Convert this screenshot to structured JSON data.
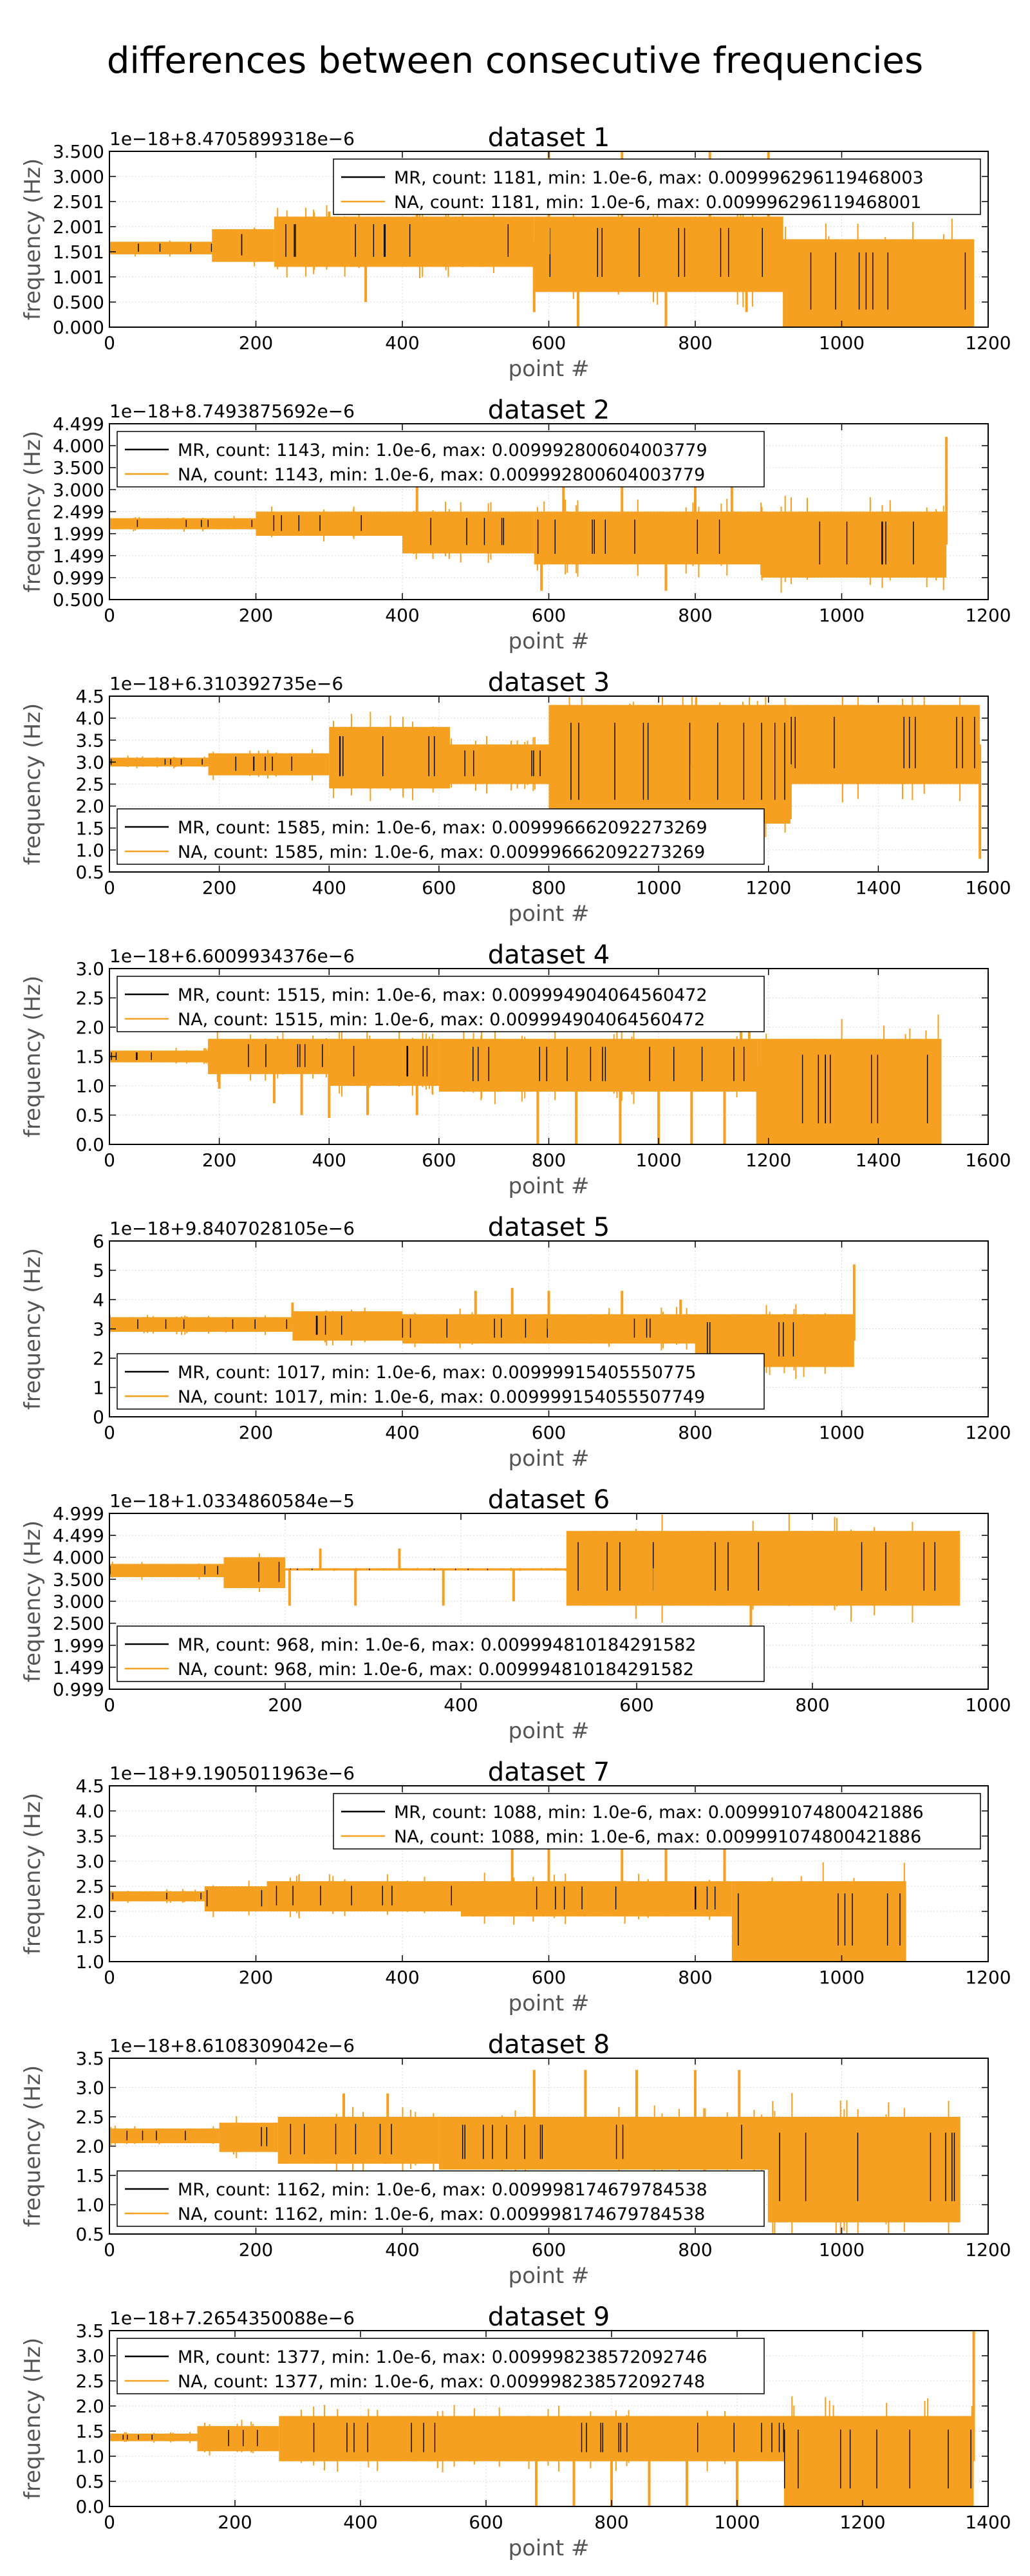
{
  "title": "differences between consecutive frequencies",
  "colors": {
    "MR": "#000000",
    "NA": "#f5a020",
    "axes": "#000000",
    "grid": "#d8d8d8",
    "label": "#555555"
  },
  "chart_data": [
    {
      "type": "line",
      "title": "dataset 1",
      "offset_label": "1e−18+8.4705899318e−6",
      "xlabel": "point #",
      "ylabel": "frequency (Hz)",
      "xlim": [
        0,
        1200
      ],
      "ylim": [
        0.0,
        3.5
      ],
      "xticks": [
        "0",
        "200",
        "400",
        "600",
        "800",
        "1000",
        "1200"
      ],
      "xtick_values": [
        0,
        200,
        400,
        600,
        800,
        1000,
        1200
      ],
      "yticks": [
        "0.000",
        "0.500",
        "1.001",
        "1.501",
        "2.001",
        "2.501",
        "3.000",
        "3.500"
      ],
      "ytick_values": [
        0.0,
        0.5,
        1.001,
        1.501,
        2.001,
        2.501,
        3.0,
        3.5
      ],
      "grid": true,
      "legend_position": "top-right",
      "series": [
        {
          "name": "MR, count: 1181, min: 1.0e-6, max: 0.009996296119468003",
          "count": 1181,
          "min": "1.0e-6",
          "max": "0.009996296119468003"
        },
        {
          "name": "NA, count: 1181, min: 1.0e-6, max: 0.009996296119468001",
          "count": 1181,
          "min": "1.0e-6",
          "max": "0.009996296119468001"
        }
      ],
      "bands": [
        [
          0,
          140,
          1.45,
          1.7
        ],
        [
          140,
          225,
          1.3,
          1.95
        ],
        [
          225,
          580,
          1.2,
          2.2
        ],
        [
          580,
          920,
          0.7,
          2.2
        ],
        [
          920,
          1181,
          0.0,
          1.75
        ]
      ],
      "spikes": [
        [
          300,
          2.3
        ],
        [
          350,
          0.5
        ],
        [
          420,
          2.6
        ],
        [
          580,
          0.3
        ],
        [
          600,
          3.6
        ],
        [
          640,
          0.0
        ],
        [
          700,
          3.6
        ],
        [
          760,
          0.0
        ],
        [
          820,
          3.6
        ],
        [
          870,
          0.3
        ],
        [
          900,
          3.6
        ]
      ]
    },
    {
      "type": "line",
      "title": "dataset 2",
      "offset_label": "1e−18+8.7493875692e−6",
      "xlabel": "point #",
      "ylabel": "frequency (Hz)",
      "xlim": [
        0,
        1200
      ],
      "ylim": [
        0.5,
        4.499
      ],
      "xticks": [
        "0",
        "200",
        "400",
        "600",
        "800",
        "1000",
        "1200"
      ],
      "xtick_values": [
        0,
        200,
        400,
        600,
        800,
        1000,
        1200
      ],
      "yticks": [
        "0.500",
        "0.999",
        "1.499",
        "1.999",
        "2.499",
        "3.000",
        "3.500",
        "4.000",
        "4.499"
      ],
      "ytick_values": [
        0.5,
        0.999,
        1.499,
        1.999,
        2.499,
        3.0,
        3.5,
        4.0,
        4.499
      ],
      "grid": true,
      "legend_position": "top-left",
      "series": [
        {
          "name": "MR, count: 1143, min: 1.0e-6, max: 0.009992800604003779",
          "count": 1143,
          "min": "1.0e-6",
          "max": "0.009992800604003779"
        },
        {
          "name": "NA, count: 1143, min: 1.0e-6, max: 0.009992800604003779",
          "count": 1143,
          "min": "1.0e-6",
          "max": "0.009992800604003779"
        }
      ],
      "bands": [
        [
          0,
          200,
          2.1,
          2.35
        ],
        [
          200,
          400,
          1.95,
          2.5
        ],
        [
          400,
          580,
          1.55,
          2.5
        ],
        [
          580,
          890,
          1.3,
          2.5
        ],
        [
          890,
          1143,
          1.0,
          2.5
        ]
      ],
      "spikes": [
        [
          420,
          3.2
        ],
        [
          590,
          0.7
        ],
        [
          620,
          4.2
        ],
        [
          700,
          3.9
        ],
        [
          760,
          0.7
        ],
        [
          800,
          4.2
        ],
        [
          850,
          4.0
        ],
        [
          1143,
          4.2
        ]
      ]
    },
    {
      "type": "line",
      "title": "dataset 3",
      "offset_label": "1e−18+6.310392735e−6",
      "xlabel": "point #",
      "ylabel": "frequency (Hz)",
      "xlim": [
        0,
        1600
      ],
      "ylim": [
        0.5,
        4.5
      ],
      "xticks": [
        "0",
        "200",
        "400",
        "600",
        "800",
        "1000",
        "1200",
        "1400",
        "1600"
      ],
      "xtick_values": [
        0,
        200,
        400,
        600,
        800,
        1000,
        1200,
        1400,
        1600
      ],
      "yticks": [
        "0.5",
        "1.0",
        "1.5",
        "2.0",
        "2.5",
        "3.0",
        "3.5",
        "4.0",
        "4.5"
      ],
      "ytick_values": [
        0.5,
        1.0,
        1.5,
        2.0,
        2.5,
        3.0,
        3.5,
        4.0,
        4.5
      ],
      "grid": true,
      "legend_position": "bottom-left",
      "series": [
        {
          "name": "MR, count: 1585, min: 1.0e-6, max: 0.009996662092273269",
          "count": 1585,
          "min": "1.0e-6",
          "max": "0.009996662092273269"
        },
        {
          "name": "NA, count: 1585, min: 1.0e-6, max: 0.009996662092273269",
          "count": 1585,
          "min": "1.0e-6",
          "max": "0.009996662092273269"
        }
      ],
      "bands": [
        [
          0,
          180,
          2.9,
          3.1
        ],
        [
          180,
          400,
          2.7,
          3.2
        ],
        [
          400,
          620,
          2.4,
          3.8
        ],
        [
          620,
          800,
          2.5,
          3.4
        ],
        [
          800,
          1240,
          1.6,
          4.3
        ],
        [
          1240,
          1585,
          2.5,
          4.3
        ]
      ],
      "spikes": [
        [
          1060,
          1.7
        ],
        [
          1140,
          1.7
        ],
        [
          1240,
          1.7
        ],
        [
          1585,
          0.8
        ]
      ]
    },
    {
      "type": "line",
      "title": "dataset 4",
      "offset_label": "1e−18+6.6009934376e−6",
      "xlabel": "point #",
      "ylabel": "frequency (Hz)",
      "xlim": [
        0,
        1600
      ],
      "ylim": [
        0.0,
        3.0
      ],
      "xticks": [
        "0",
        "200",
        "400",
        "600",
        "800",
        "1000",
        "1200",
        "1400",
        "1600"
      ],
      "xtick_values": [
        0,
        200,
        400,
        600,
        800,
        1000,
        1200,
        1400,
        1600
      ],
      "yticks": [
        "0.0",
        "0.5",
        "1.0",
        "1.5",
        "2.0",
        "2.5",
        "3.0"
      ],
      "ytick_values": [
        0.0,
        0.5,
        1.0,
        1.5,
        2.0,
        2.5,
        3.0
      ],
      "grid": true,
      "legend_position": "top-left",
      "series": [
        {
          "name": "MR, count: 1515, min: 1.0e-6, max: 0.009994904064560472",
          "count": 1515,
          "min": "1.0e-6",
          "max": "0.009994904064560472"
        },
        {
          "name": "NA, count: 1515, min: 1.0e-6, max: 0.009994904064560472",
          "count": 1515,
          "min": "1.0e-6",
          "max": "0.009994904064560472"
        }
      ],
      "bands": [
        [
          0,
          180,
          1.4,
          1.6
        ],
        [
          180,
          400,
          1.2,
          1.8
        ],
        [
          400,
          600,
          1.0,
          1.8
        ],
        [
          600,
          1180,
          0.9,
          1.8
        ],
        [
          1180,
          1515,
          0.0,
          1.8
        ]
      ],
      "spikes": [
        [
          200,
          0.95
        ],
        [
          300,
          0.7
        ],
        [
          350,
          0.5
        ],
        [
          400,
          0.45
        ],
        [
          470,
          0.5
        ],
        [
          560,
          0.5
        ],
        [
          780,
          0.0
        ],
        [
          850,
          0.0
        ],
        [
          930,
          0.0
        ],
        [
          1000,
          0.0
        ],
        [
          1060,
          0.0
        ],
        [
          1120,
          0.0
        ],
        [
          1150,
          2.6
        ],
        [
          1165,
          2.6
        ],
        [
          1180,
          0.0
        ]
      ]
    },
    {
      "type": "line",
      "title": "dataset 5",
      "offset_label": "1e−18+9.8407028105e−6",
      "xlabel": "point #",
      "ylabel": "frequency (Hz)",
      "xlim": [
        0,
        1200
      ],
      "ylim": [
        0,
        6
      ],
      "xticks": [
        "0",
        "200",
        "400",
        "600",
        "800",
        "1000",
        "1200"
      ],
      "xtick_values": [
        0,
        200,
        400,
        600,
        800,
        1000,
        1200
      ],
      "yticks": [
        "0",
        "1",
        "2",
        "3",
        "4",
        "5",
        "6"
      ],
      "ytick_values": [
        0,
        1,
        2,
        3,
        4,
        5,
        6
      ],
      "grid": true,
      "legend_position": "bottom-left",
      "series": [
        {
          "name": "MR, count: 1017, min: 1.0e-6, max: 0.00999915405550775",
          "count": 1017,
          "min": "1.0e-6",
          "max": "0.00999915405550775"
        },
        {
          "name": "NA, count: 1017, min: 1.0e-6, max: 0.009999154055507749",
          "count": 1017,
          "min": "1.0e-6",
          "max": "0.009999154055507749"
        }
      ],
      "bands": [
        [
          0,
          250,
          2.9,
          3.4
        ],
        [
          250,
          400,
          2.6,
          3.6
        ],
        [
          400,
          800,
          2.5,
          3.5
        ],
        [
          800,
          1017,
          1.7,
          3.5
        ]
      ],
      "spikes": [
        [
          250,
          3.9
        ],
        [
          500,
          4.3
        ],
        [
          550,
          4.4
        ],
        [
          600,
          4.3
        ],
        [
          700,
          4.3
        ],
        [
          780,
          4.0
        ],
        [
          1017,
          5.2
        ]
      ]
    },
    {
      "type": "line",
      "title": "dataset 6",
      "offset_label": "1e−18+1.0334860584e−5",
      "xlabel": "point #",
      "ylabel": "frequency (Hz)",
      "xlim": [
        0,
        1000
      ],
      "ylim": [
        0.999,
        4.999
      ],
      "xticks": [
        "0",
        "200",
        "400",
        "600",
        "800",
        "1000"
      ],
      "xtick_values": [
        0,
        200,
        400,
        600,
        800,
        1000
      ],
      "yticks": [
        "0.999",
        "1.499",
        "1.999",
        "2.500",
        "3.000",
        "3.500",
        "4.000",
        "4.499",
        "4.999"
      ],
      "ytick_values": [
        0.999,
        1.499,
        1.999,
        2.5,
        3.0,
        3.5,
        4.0,
        4.499,
        4.999
      ],
      "grid": true,
      "legend_position": "bottom-left",
      "series": [
        {
          "name": "MR, count: 968, min: 1.0e-6, max: 0.009994810184291582",
          "count": 968,
          "min": "1.0e-6",
          "max": "0.009994810184291582"
        },
        {
          "name": "NA, count: 968, min: 1.0e-6, max: 0.009994810184291582",
          "count": 968,
          "min": "1.0e-6",
          "max": "0.009994810184291582"
        }
      ],
      "bands": [
        [
          0,
          130,
          3.55,
          3.85
        ],
        [
          130,
          200,
          3.3,
          4.0
        ],
        [
          200,
          520,
          3.7,
          3.75
        ],
        [
          520,
          800,
          2.9,
          4.6
        ],
        [
          800,
          968,
          2.9,
          4.6
        ]
      ],
      "spikes": [
        [
          205,
          2.9
        ],
        [
          240,
          4.2
        ],
        [
          280,
          2.9
        ],
        [
          330,
          4.2
        ],
        [
          380,
          2.9
        ],
        [
          460,
          3.0
        ],
        [
          560,
          4.3
        ],
        [
          620,
          3.0
        ],
        [
          730,
          1.2
        ]
      ]
    },
    {
      "type": "line",
      "title": "dataset 7",
      "offset_label": "1e−18+9.1905011963e−6",
      "xlabel": "point #",
      "ylabel": "frequency (Hz)",
      "xlim": [
        0,
        1200
      ],
      "ylim": [
        1.0,
        4.5
      ],
      "xticks": [
        "0",
        "200",
        "400",
        "600",
        "800",
        "1000",
        "1200"
      ],
      "xtick_values": [
        0,
        200,
        400,
        600,
        800,
        1000,
        1200
      ],
      "yticks": [
        "1.0",
        "1.5",
        "2.0",
        "2.5",
        "3.0",
        "3.5",
        "4.0",
        "4.5"
      ],
      "ytick_values": [
        1.0,
        1.5,
        2.0,
        2.5,
        3.0,
        3.5,
        4.0,
        4.5
      ],
      "grid": true,
      "legend_position": "top-right",
      "series": [
        {
          "name": "MR, count: 1088, min: 1.0e-6, max: 0.009991074800421886",
          "count": 1088,
          "min": "1.0e-6",
          "max": "0.009991074800421886"
        },
        {
          "name": "NA, count: 1088, min: 1.0e-6, max: 0.009991074800421886",
          "count": 1088,
          "min": "1.0e-6",
          "max": "0.009991074800421886"
        }
      ],
      "bands": [
        [
          0,
          130,
          2.2,
          2.4
        ],
        [
          130,
          215,
          2.0,
          2.5
        ],
        [
          215,
          480,
          2.0,
          2.6
        ],
        [
          480,
          850,
          1.9,
          2.6
        ],
        [
          850,
          1088,
          1.0,
          2.6
        ]
      ],
      "spikes": [
        [
          550,
          3.3
        ],
        [
          600,
          3.3
        ],
        [
          700,
          3.3
        ],
        [
          760,
          3.3
        ],
        [
          840,
          3.3
        ]
      ]
    },
    {
      "type": "line",
      "title": "dataset 8",
      "offset_label": "1e−18+8.6108309042e−6",
      "xlabel": "point #",
      "ylabel": "frequency (Hz)",
      "xlim": [
        0,
        1200
      ],
      "ylim": [
        0.5,
        3.5
      ],
      "xticks": [
        "0",
        "200",
        "400",
        "600",
        "800",
        "1000",
        "1200"
      ],
      "xtick_values": [
        0,
        200,
        400,
        600,
        800,
        1000,
        1200
      ],
      "yticks": [
        "0.5",
        "1.0",
        "1.5",
        "2.0",
        "2.5",
        "3.0",
        "3.5"
      ],
      "ytick_values": [
        0.5,
        1.0,
        1.5,
        2.0,
        2.5,
        3.0,
        3.5
      ],
      "grid": true,
      "legend_position": "bottom-left",
      "series": [
        {
          "name": "MR, count: 1162, min: 1.0e-6, max: 0.009998174679784538",
          "count": 1162,
          "min": "1.0e-6",
          "max": "0.009998174679784538"
        },
        {
          "name": "NA, count: 1162, min: 1.0e-6, max: 0.009998174679784538",
          "count": 1162,
          "min": "1.0e-6",
          "max": "0.009998174679784538"
        }
      ],
      "bands": [
        [
          0,
          150,
          2.05,
          2.3
        ],
        [
          150,
          230,
          1.9,
          2.4
        ],
        [
          230,
          450,
          1.7,
          2.5
        ],
        [
          450,
          900,
          1.6,
          2.5
        ],
        [
          900,
          1162,
          0.7,
          2.5
        ]
      ],
      "spikes": [
        [
          320,
          2.9
        ],
        [
          380,
          2.9
        ],
        [
          580,
          3.3
        ],
        [
          650,
          3.3
        ],
        [
          720,
          3.3
        ],
        [
          800,
          3.3
        ],
        [
          860,
          3.3
        ]
      ]
    },
    {
      "type": "line",
      "title": "dataset 9",
      "offset_label": "1e−18+7.2654350088e−6",
      "xlabel": "point #",
      "ylabel": "frequency (Hz)",
      "xlim": [
        0,
        1400
      ],
      "ylim": [
        0.0,
        3.5
      ],
      "xticks": [
        "0",
        "200",
        "400",
        "600",
        "800",
        "1000",
        "1200",
        "1400"
      ],
      "xtick_values": [
        0,
        200,
        400,
        600,
        800,
        1000,
        1200,
        1400
      ],
      "yticks": [
        "0.0",
        "0.5",
        "1.0",
        "1.5",
        "2.0",
        "2.5",
        "3.0",
        "3.5"
      ],
      "ytick_values": [
        0.0,
        0.5,
        1.0,
        1.5,
        2.0,
        2.5,
        3.0,
        3.5
      ],
      "grid": true,
      "legend_position": "top-left",
      "series": [
        {
          "name": "MR, count: 1377, min: 1.0e-6, max: 0.009998238572092746",
          "count": 1377,
          "min": "1.0e-6",
          "max": "0.009998238572092746"
        },
        {
          "name": "NA, count: 1377, min: 1.0e-6, max: 0.009998238572092748",
          "count": 1377,
          "min": "1.0e-6",
          "max": "0.009998238572092748"
        }
      ],
      "bands": [
        [
          0,
          140,
          1.3,
          1.45
        ],
        [
          140,
          270,
          1.1,
          1.6
        ],
        [
          270,
          540,
          0.9,
          1.8
        ],
        [
          540,
          1075,
          0.9,
          1.8
        ],
        [
          1075,
          1377,
          0.0,
          1.8
        ]
      ],
      "spikes": [
        [
          680,
          0.0
        ],
        [
          740,
          0.0
        ],
        [
          800,
          0.0
        ],
        [
          860,
          0.0
        ],
        [
          920,
          0.0
        ],
        [
          1000,
          0.0
        ],
        [
          1377,
          3.5
        ]
      ]
    }
  ]
}
